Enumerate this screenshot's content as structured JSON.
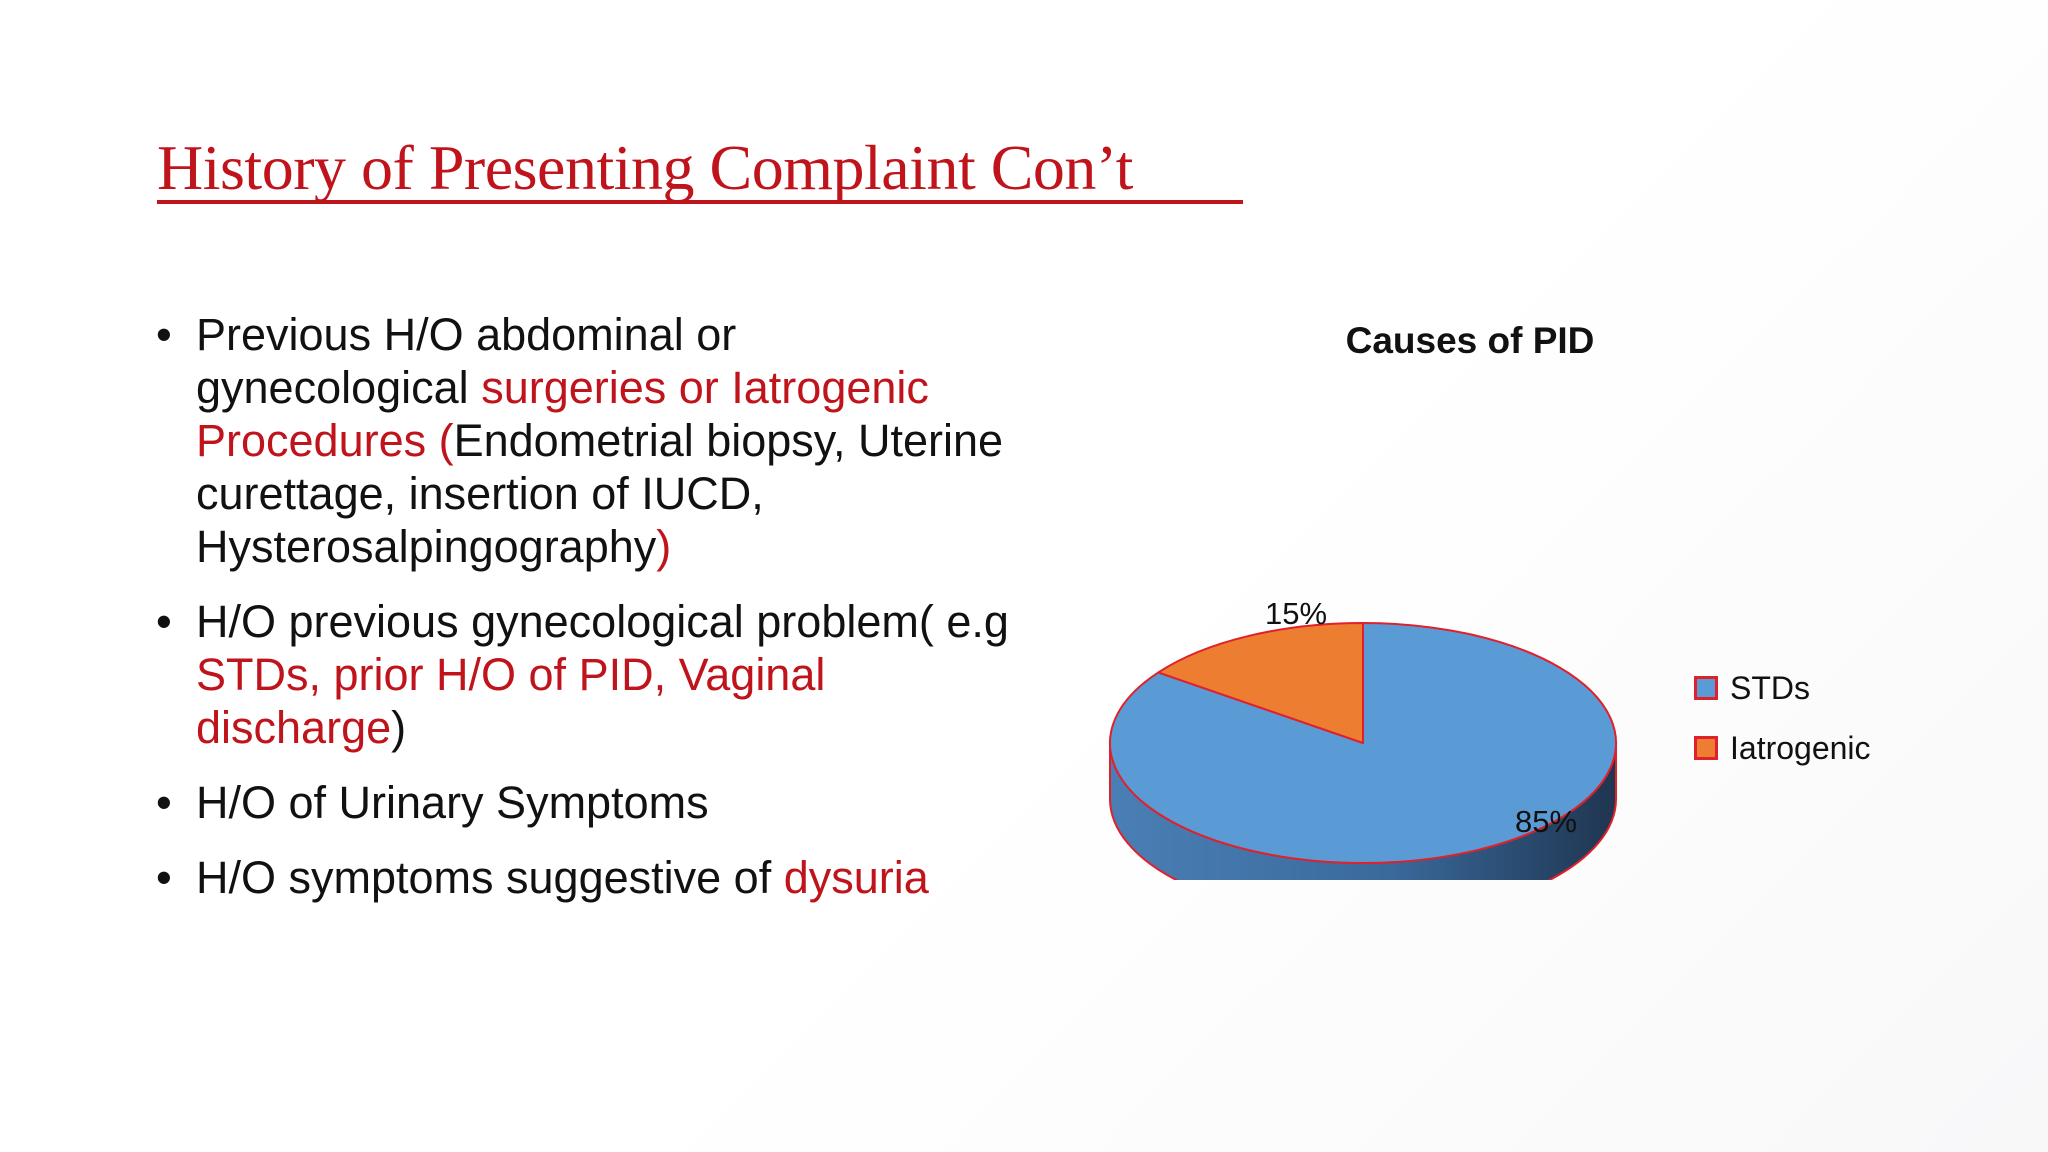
{
  "slide": {
    "title": "History of Presenting Complaint Con’t",
    "bullets": [
      {
        "runs": [
          {
            "text": "Previous H/O abdominal or gynecological ",
            "red": false
          },
          {
            "text": "surgeries or Iatrogenic Procedures (",
            "red": true
          },
          {
            "text": "Endometrial biopsy, Uterine curettage, insertion of IUCD, Hysterosalpingography",
            "red": false
          },
          {
            "text": ")",
            "red": true
          }
        ]
      },
      {
        "runs": [
          {
            "text": "H/O previous gynecological problem( e.g ",
            "red": false
          },
          {
            "text": "STDs, prior H/O of PID, Vaginal discharge",
            "red": true
          },
          {
            "text": ")",
            "red": false
          }
        ]
      },
      {
        "runs": [
          {
            "text": "H/O of Urinary Symptoms",
            "red": false
          }
        ]
      },
      {
        "runs": [
          {
            "text": "H/O symptoms suggestive of ",
            "red": false
          },
          {
            "text": "dysuria",
            "red": true
          }
        ]
      }
    ],
    "bullet_glyph": "•"
  },
  "chart_data": {
    "type": "pie",
    "title": "Causes of PID",
    "style": "3d",
    "slices": [
      {
        "label": "STDs",
        "value": 85,
        "display": "85%",
        "color": "#5b9bd5"
      },
      {
        "label": "Iatrogenic",
        "value": 15,
        "display": "15%",
        "color": "#ed7d31"
      }
    ],
    "edge_color": "#e0212b",
    "legend_position": "right"
  }
}
